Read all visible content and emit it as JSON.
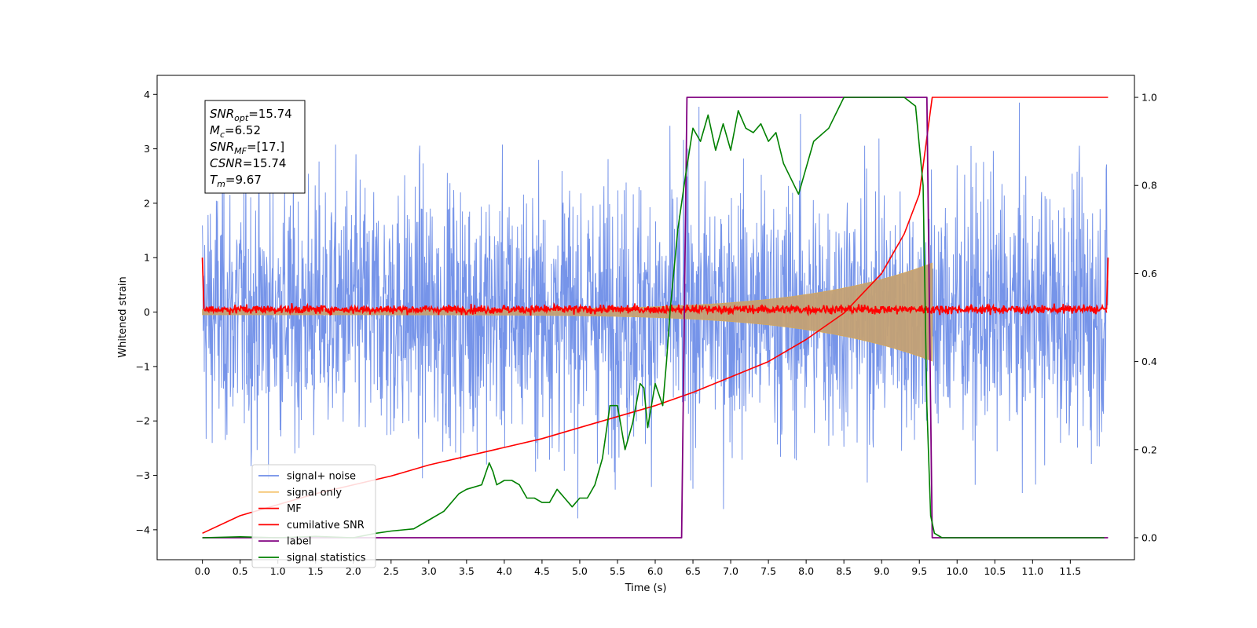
{
  "chart_data": {
    "type": "line",
    "title": "",
    "xlabel": "Time (s)",
    "ylabel": "Whitened strain",
    "ylabel_right": "",
    "xlim": [
      -0.6,
      12.35
    ],
    "ylim": [
      -4.55,
      4.35
    ],
    "ylim_right": [
      -0.05,
      1.05
    ],
    "x_ticks": [
      "0.0",
      "0.5",
      "1.0",
      "1.5",
      "2.0",
      "2.5",
      "3.0",
      "3.5",
      "4.0",
      "4.5",
      "5.0",
      "5.5",
      "6.0",
      "6.5",
      "7.0",
      "7.5",
      "8.0",
      "8.5",
      "9.0",
      "9.5",
      "10.0",
      "10.5",
      "11.0",
      "11.5"
    ],
    "y_ticks": [
      "4",
      "3",
      "2",
      "1",
      "0",
      "−1",
      "−2",
      "−3",
      "−4"
    ],
    "y_ticks_right": [
      "1.0",
      "0.8",
      "0.6",
      "0.4",
      "0.2",
      "0.0"
    ],
    "grid": false,
    "legend_position": "lower-left",
    "signal_noise": {
      "x_range": [
        0.0,
        12.0
      ],
      "std": 1.2,
      "min": -4.2,
      "max": 3.9
    },
    "signal_only": {
      "x_range": [
        0.0,
        9.67
      ],
      "envelope_start": 0.05,
      "envelope_end": 0.9
    },
    "series": [
      {
        "name": "signal+ noise",
        "color": "#6f8ee8",
        "axis": "left"
      },
      {
        "name": "signal only",
        "color": "#f5c675",
        "axis": "left"
      },
      {
        "name": "MF",
        "color": "#ff0000",
        "axis": "left",
        "x": [
          0.0,
          0.02,
          11.98,
          12.0
        ],
        "y": [
          1.0,
          0.05,
          0.05,
          1.0
        ]
      },
      {
        "name": "cumilative SNR",
        "color": "#ff0000",
        "axis": "right",
        "x": [
          0.0,
          0.5,
          1.0,
          1.5,
          2.0,
          2.5,
          3.0,
          3.5,
          4.0,
          4.5,
          5.0,
          5.5,
          6.0,
          6.5,
          7.0,
          7.5,
          8.0,
          8.5,
          9.0,
          9.3,
          9.5,
          9.67,
          12.0
        ],
        "y": [
          0.01,
          0.05,
          0.075,
          0.1,
          0.12,
          0.14,
          0.165,
          0.185,
          0.205,
          0.225,
          0.25,
          0.275,
          0.3,
          0.33,
          0.365,
          0.4,
          0.45,
          0.51,
          0.6,
          0.69,
          0.78,
          1.0,
          1.0
        ]
      },
      {
        "name": "label",
        "color": "#800080",
        "axis": "right",
        "x": [
          0.0,
          6.35,
          6.42,
          9.6,
          9.67,
          12.0
        ],
        "y": [
          0.0,
          0.0,
          1.0,
          1.0,
          0.0,
          0.0
        ]
      },
      {
        "name": "signal statistics",
        "color": "#008000",
        "axis": "right",
        "x": [
          0.0,
          0.5,
          1.0,
          1.5,
          2.0,
          2.3,
          2.5,
          2.8,
          3.0,
          3.2,
          3.4,
          3.5,
          3.7,
          3.8,
          3.85,
          3.9,
          4.0,
          4.1,
          4.2,
          4.3,
          4.4,
          4.5,
          4.6,
          4.7,
          4.8,
          4.9,
          5.0,
          5.1,
          5.2,
          5.3,
          5.4,
          5.5,
          5.6,
          5.65,
          5.7,
          5.8,
          5.85,
          5.9,
          6.0,
          6.1,
          6.15,
          6.2,
          6.3,
          6.4,
          6.5,
          6.6,
          6.7,
          6.8,
          6.9,
          7.0,
          7.1,
          7.2,
          7.3,
          7.4,
          7.5,
          7.6,
          7.7,
          7.9,
          8.0,
          8.1,
          8.3,
          8.5,
          8.7,
          9.0,
          9.3,
          9.45,
          9.55,
          9.6,
          9.65,
          9.7,
          9.8,
          10.0,
          11.0,
          11.95
        ],
        "y": [
          0.0,
          0.002,
          0.0,
          0.003,
          0.0,
          0.01,
          0.015,
          0.02,
          0.04,
          0.06,
          0.1,
          0.11,
          0.12,
          0.17,
          0.15,
          0.12,
          0.13,
          0.13,
          0.12,
          0.09,
          0.09,
          0.08,
          0.08,
          0.11,
          0.09,
          0.07,
          0.09,
          0.09,
          0.12,
          0.18,
          0.3,
          0.3,
          0.2,
          0.23,
          0.26,
          0.35,
          0.34,
          0.25,
          0.35,
          0.3,
          0.4,
          0.52,
          0.7,
          0.82,
          0.93,
          0.9,
          0.96,
          0.88,
          0.94,
          0.88,
          0.97,
          0.93,
          0.92,
          0.94,
          0.9,
          0.92,
          0.85,
          0.78,
          0.84,
          0.9,
          0.93,
          1.0,
          1.0,
          1.0,
          1.0,
          0.98,
          0.8,
          0.3,
          0.05,
          0.01,
          0.0,
          0.0,
          0.0,
          0.0
        ]
      }
    ],
    "annotations": [
      {
        "base": "SNR",
        "sub": "opt",
        "value": "=15.74"
      },
      {
        "base": "M",
        "sub": "c",
        "value": "=6.52"
      },
      {
        "base": "SNR",
        "sub": "MF",
        "value": "=[17.]"
      },
      {
        "base": "CSNR",
        "sub": "",
        "value": "=15.74"
      },
      {
        "base": "T",
        "sub": "m",
        "value": "=9.67"
      }
    ]
  }
}
